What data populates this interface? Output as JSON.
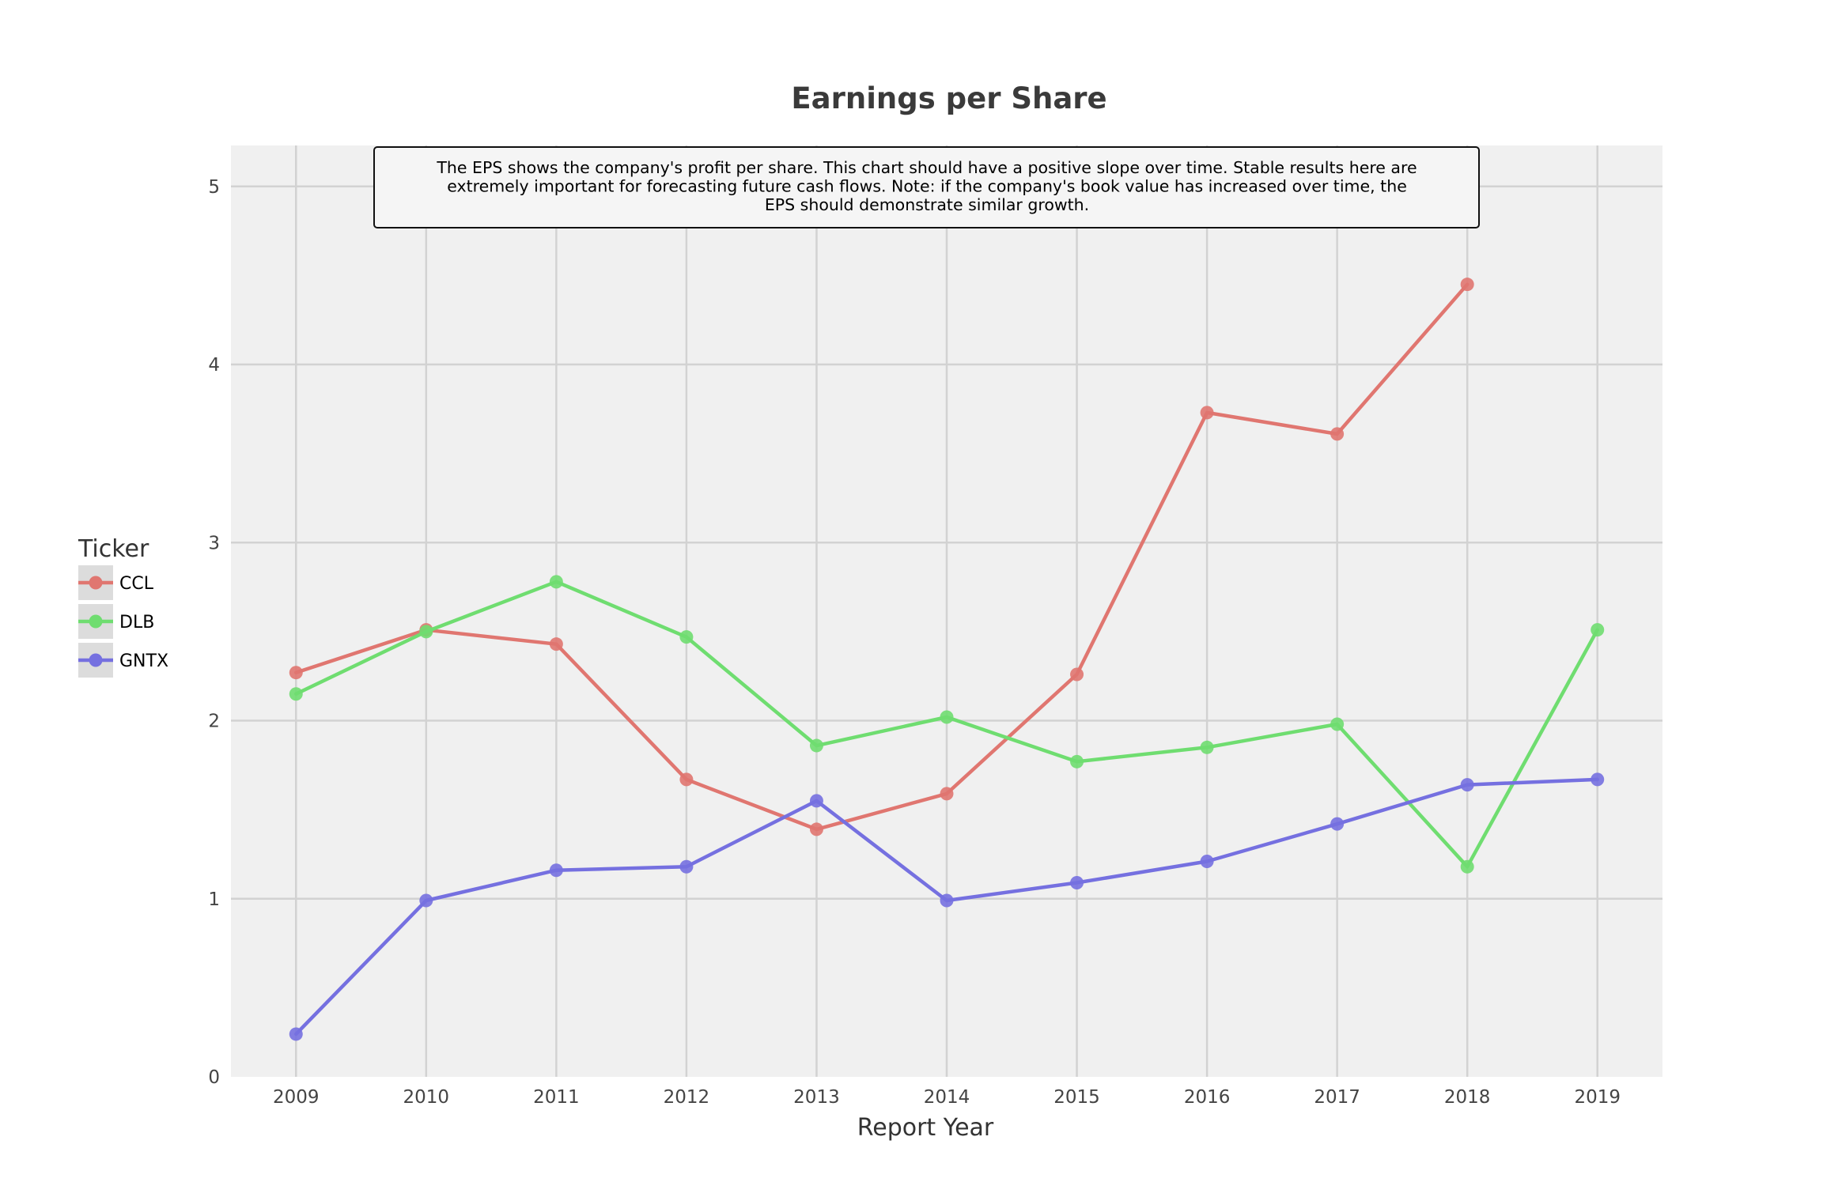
{
  "chart_data": {
    "type": "line",
    "title": "Earnings per Share",
    "xlabel": "Report Year",
    "ylabel": "",
    "x": [
      2009,
      2010,
      2011,
      2012,
      2013,
      2014,
      2015,
      2016,
      2017,
      2018,
      2019
    ],
    "xlim": [
      2008.5,
      2019.5
    ],
    "ylim": [
      0,
      5.23
    ],
    "yticks": [
      0,
      1,
      2,
      3,
      4,
      5
    ],
    "grid": true,
    "legend": {
      "title": "Ticker",
      "placement": "left"
    },
    "annotation": [
      "The EPS shows the company's profit per share. This chart should have a positive slope over time. Stable results here are",
      "extremely important for forecasting future cash flows. Note: if the company's book value has increased over time, the",
      "EPS should demonstrate similar growth."
    ],
    "series": [
      {
        "name": "CCL",
        "color": "#e07670",
        "x": [
          2009,
          2010,
          2011,
          2012,
          2013,
          2014,
          2015,
          2016,
          2017,
          2018
        ],
        "values": [
          2.27,
          2.51,
          2.43,
          1.67,
          1.39,
          1.59,
          2.26,
          3.73,
          3.61,
          4.45
        ]
      },
      {
        "name": "DLB",
        "color": "#6fdd70",
        "x": [
          2009,
          2010,
          2011,
          2012,
          2013,
          2014,
          2015,
          2016,
          2017,
          2018,
          2019
        ],
        "values": [
          2.15,
          2.5,
          2.78,
          2.47,
          1.86,
          2.02,
          1.77,
          1.85,
          1.98,
          1.18,
          2.51
        ]
      },
      {
        "name": "GNTX",
        "color": "#7570e0",
        "x": [
          2009,
          2010,
          2011,
          2012,
          2013,
          2014,
          2015,
          2016,
          2017,
          2018,
          2019
        ],
        "values": [
          0.24,
          0.99,
          1.16,
          1.18,
          1.55,
          0.99,
          1.09,
          1.21,
          1.42,
          1.64,
          1.67
        ]
      }
    ]
  }
}
